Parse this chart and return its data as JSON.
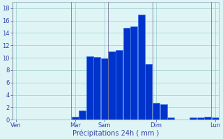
{
  "ylabel_values": [
    0,
    2,
    4,
    6,
    8,
    10,
    12,
    14,
    16,
    18
  ],
  "ylim": [
    0,
    19
  ],
  "background_color": "#dff5f5",
  "grid_color": "#99cccc",
  "bar_color": "#0033cc",
  "bar_edge_color": "#4477ee",
  "xlabel": "Précipitations 24h ( mm )",
  "xlabel_color": "#3344aa",
  "tick_color": "#3344aa",
  "bar_values": [
    0,
    0,
    0,
    0,
    0,
    0,
    0,
    0,
    0.5,
    1.5,
    10.2,
    10.1,
    9.9,
    11.0,
    11.2,
    14.8,
    15.0,
    17.0,
    9.0,
    2.7,
    2.5,
    0.3,
    0,
    0,
    0.3,
    0.4,
    0.5,
    0.3
  ],
  "num_bars": 28,
  "xlim": [
    0,
    28
  ],
  "day_labels": [
    "Ven",
    "Mar",
    "Sam",
    "Dim",
    "Lun"
  ],
  "day_tick_positions": [
    0.5,
    8.5,
    12.5,
    19.5,
    27.5
  ],
  "vline_positions": [
    0,
    8,
    13,
    19,
    27
  ]
}
